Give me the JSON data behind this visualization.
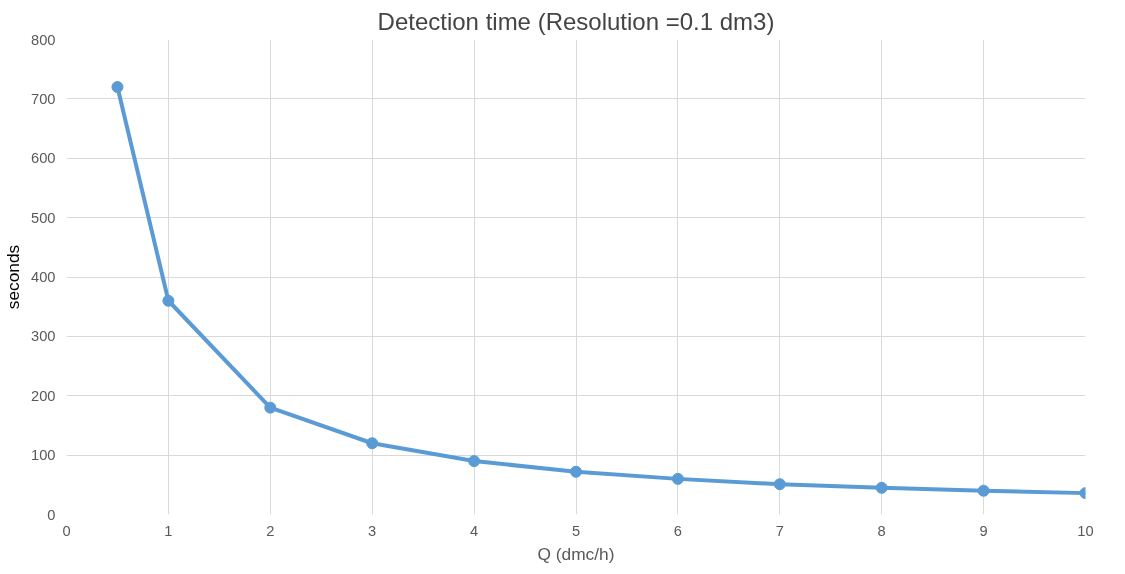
{
  "chart_data": {
    "type": "line",
    "title": "Detection time (Resolution =0.1 dm3)",
    "xlabel": "Q (dmc/h)",
    "ylabel": "seconds",
    "x": [
      0.5,
      1,
      2,
      3,
      4,
      5,
      6,
      7,
      8,
      9,
      10
    ],
    "series": [
      {
        "color": "#5b9bd5",
        "values": [
          720,
          360,
          180,
          120,
          90,
          72,
          60,
          51,
          45,
          40,
          36
        ]
      }
    ],
    "xlim": [
      0,
      10
    ],
    "xticks": [
      0,
      1,
      2,
      3,
      4,
      5,
      6,
      7,
      8,
      9,
      10
    ],
    "ylim": [
      0,
      800
    ],
    "yticks": [
      0,
      100,
      200,
      300,
      400,
      500,
      600,
      700,
      800
    ],
    "grid": true,
    "marker": "circle",
    "line_style": "solid"
  }
}
